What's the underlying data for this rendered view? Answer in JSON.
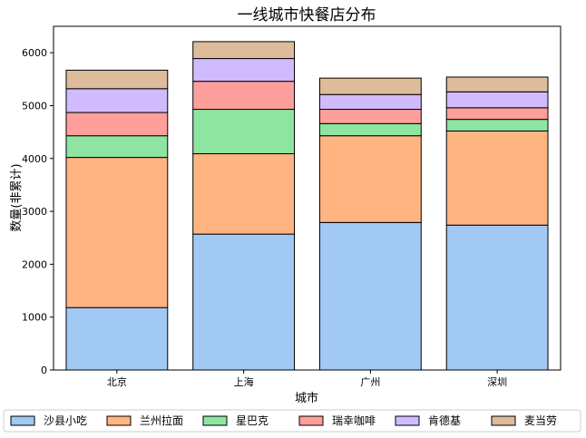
{
  "chart_data": {
    "type": "bar",
    "stacked": true,
    "title": "一线城市快餐店分布",
    "xlabel": "城市",
    "ylabel": "数量(非累计)",
    "categories": [
      "北京",
      "上海",
      "广州",
      "深圳"
    ],
    "ylim": [
      0,
      6500
    ],
    "yticks": [
      0,
      1000,
      2000,
      3000,
      4000,
      5000,
      6000
    ],
    "legend_position": "bottom",
    "series": [
      {
        "name": "沙县小吃",
        "color": "#a1c9f4",
        "values": [
          1180,
          2570,
          2790,
          2740
        ]
      },
      {
        "name": "兰州拉面",
        "color": "#ffb482",
        "values": [
          2840,
          1520,
          1640,
          1780
        ]
      },
      {
        "name": "星巴克",
        "color": "#8de5a1",
        "values": [
          410,
          840,
          230,
          220
        ]
      },
      {
        "name": "瑞幸咖啡",
        "color": "#ff9f9b",
        "values": [
          440,
          530,
          270,
          220
        ]
      },
      {
        "name": "肯德基",
        "color": "#d0bbff",
        "values": [
          450,
          430,
          280,
          300
        ]
      },
      {
        "name": "麦当劳",
        "color": "#debb9b",
        "values": [
          350,
          320,
          310,
          280
        ]
      }
    ]
  }
}
